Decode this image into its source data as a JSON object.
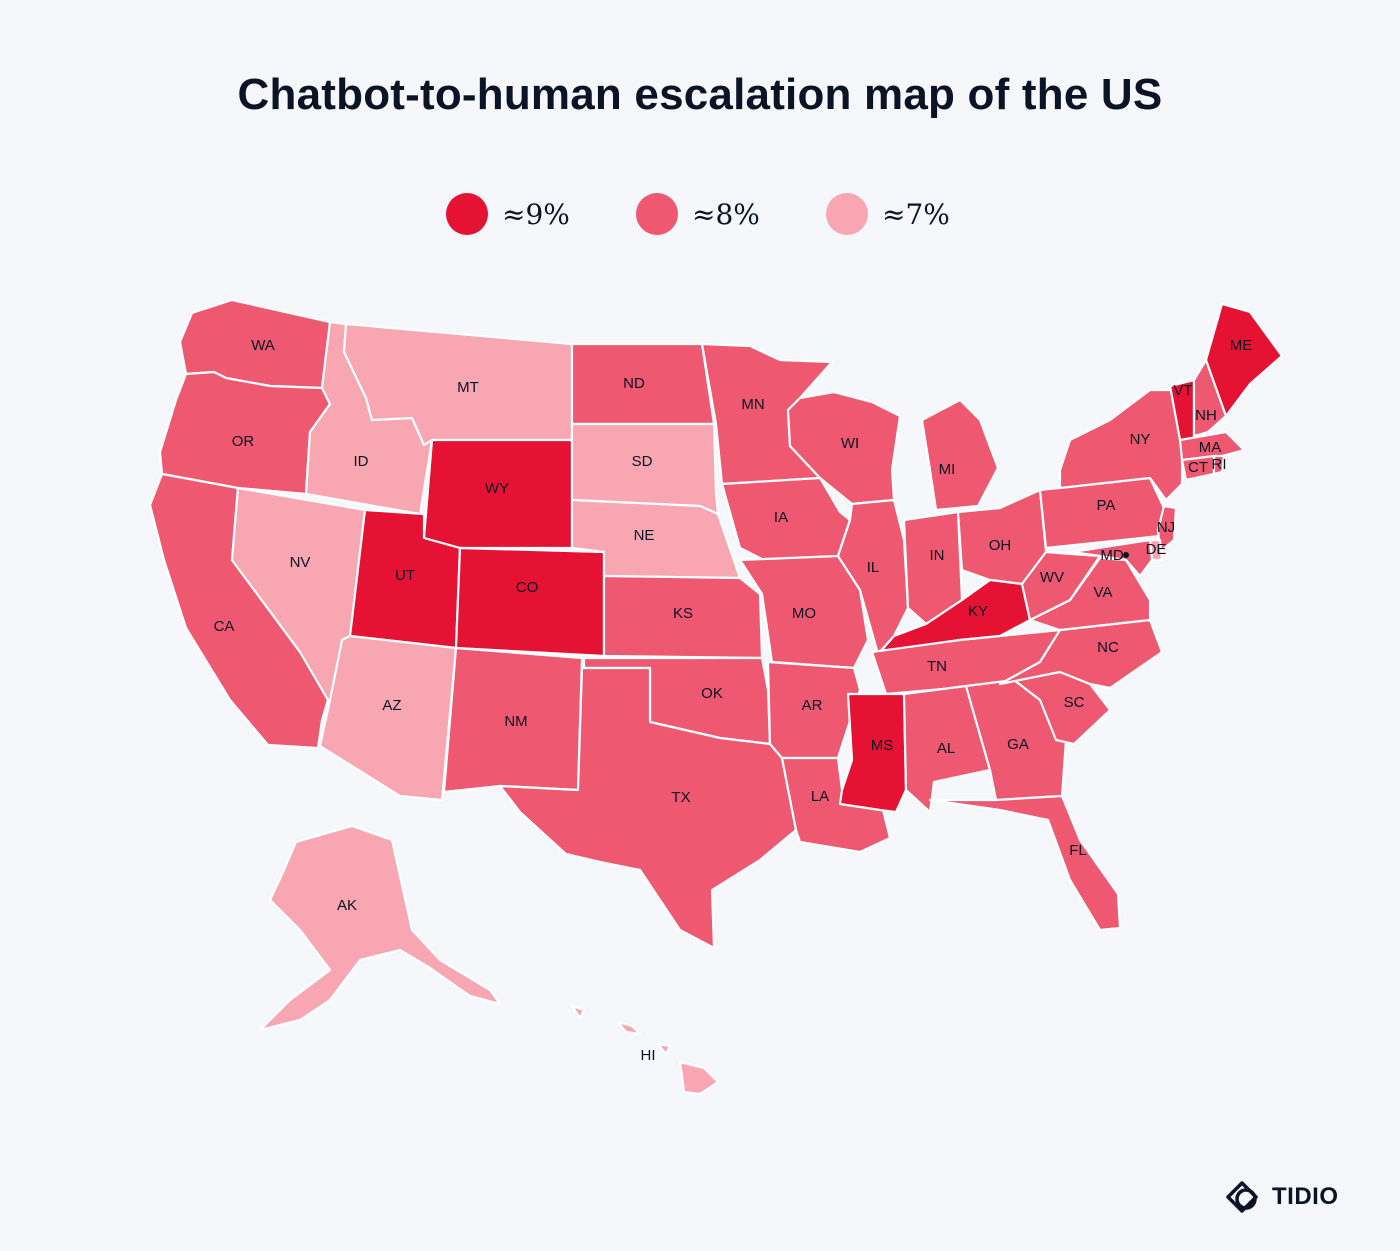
{
  "title": "Chatbot-to-human escalation map of the US",
  "legend": [
    {
      "label": "≈9%",
      "color": "#e51234"
    },
    {
      "label": "≈8%",
      "color": "#ee5870"
    },
    {
      "label": "≈7%",
      "color": "#f7a6b2"
    }
  ],
  "colors": {
    "high": "#e51234",
    "mid": "#ee5870",
    "low": "#f7a6b2",
    "background": "#f5f7fa"
  },
  "states": [
    {
      "abbr": "WA",
      "level": "mid"
    },
    {
      "abbr": "OR",
      "level": "mid"
    },
    {
      "abbr": "CA",
      "level": "mid"
    },
    {
      "abbr": "ID",
      "level": "low"
    },
    {
      "abbr": "NV",
      "level": "low"
    },
    {
      "abbr": "MT",
      "level": "low"
    },
    {
      "abbr": "WY",
      "level": "high"
    },
    {
      "abbr": "UT",
      "level": "high"
    },
    {
      "abbr": "CO",
      "level": "high"
    },
    {
      "abbr": "AZ",
      "level": "low"
    },
    {
      "abbr": "NM",
      "level": "mid"
    },
    {
      "abbr": "ND",
      "level": "mid"
    },
    {
      "abbr": "SD",
      "level": "low"
    },
    {
      "abbr": "NE",
      "level": "low"
    },
    {
      "abbr": "KS",
      "level": "mid"
    },
    {
      "abbr": "OK",
      "level": "mid"
    },
    {
      "abbr": "TX",
      "level": "mid"
    },
    {
      "abbr": "MN",
      "level": "mid"
    },
    {
      "abbr": "IA",
      "level": "mid"
    },
    {
      "abbr": "MO",
      "level": "mid"
    },
    {
      "abbr": "AR",
      "level": "mid"
    },
    {
      "abbr": "LA",
      "level": "mid"
    },
    {
      "abbr": "WI",
      "level": "mid"
    },
    {
      "abbr": "IL",
      "level": "mid"
    },
    {
      "abbr": "MI",
      "level": "mid"
    },
    {
      "abbr": "IN",
      "level": "mid"
    },
    {
      "abbr": "OH",
      "level": "mid"
    },
    {
      "abbr": "KY",
      "level": "high"
    },
    {
      "abbr": "TN",
      "level": "mid"
    },
    {
      "abbr": "MS",
      "level": "high"
    },
    {
      "abbr": "AL",
      "level": "mid"
    },
    {
      "abbr": "GA",
      "level": "mid"
    },
    {
      "abbr": "FL",
      "level": "mid"
    },
    {
      "abbr": "SC",
      "level": "mid"
    },
    {
      "abbr": "NC",
      "level": "mid"
    },
    {
      "abbr": "VA",
      "level": "mid"
    },
    {
      "abbr": "WV",
      "level": "mid"
    },
    {
      "abbr": "PA",
      "level": "mid"
    },
    {
      "abbr": "NY",
      "level": "mid"
    },
    {
      "abbr": "VT",
      "level": "high"
    },
    {
      "abbr": "NH",
      "level": "mid"
    },
    {
      "abbr": "ME",
      "level": "high"
    },
    {
      "abbr": "MA",
      "level": "mid"
    },
    {
      "abbr": "CT",
      "level": "mid"
    },
    {
      "abbr": "RI",
      "level": "mid"
    },
    {
      "abbr": "NJ",
      "level": "mid"
    },
    {
      "abbr": "DE",
      "level": "low"
    },
    {
      "abbr": "MD",
      "level": "mid"
    },
    {
      "abbr": "AK",
      "level": "low"
    },
    {
      "abbr": "HI",
      "level": "low"
    }
  ],
  "brand": {
    "name": "TIDIO",
    "icon": "tidio-logo-icon"
  }
}
